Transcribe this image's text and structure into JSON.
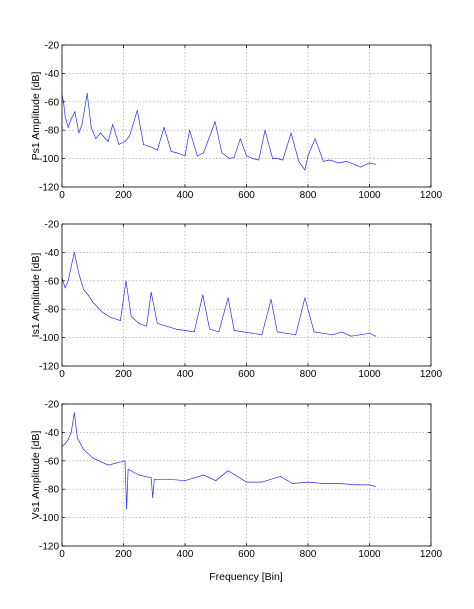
{
  "colors": {
    "series": "#2a2aff",
    "grid": "#9a9a9a",
    "frame": "#000000",
    "background": "#ffffff"
  },
  "chart_data": [
    {
      "type": "line",
      "ylabel": "Ps1 Amplitude [dB]",
      "xlabel": "",
      "xlim": [
        0,
        1200
      ],
      "ylim": [
        -120,
        -20
      ],
      "xticks": [
        0,
        200,
        400,
        600,
        800,
        1000,
        1200
      ],
      "yticks": [
        -20,
        -40,
        -60,
        -80,
        -100,
        -120
      ],
      "xtick_labels": [
        "0",
        "200",
        "400",
        "600",
        "800",
        "1000",
        "1200"
      ],
      "ytick_labels": [
        "-20",
        "-40",
        "-60",
        "-80",
        "-100",
        "-120"
      ],
      "grid": true,
      "series": [
        {
          "x": [
            0,
            5,
            10,
            20,
            30,
            42,
            55,
            65,
            82,
            95,
            110,
            125,
            150,
            165,
            185,
            205,
            220,
            245,
            265,
            290,
            310,
            332,
            355,
            375,
            400,
            415,
            440,
            460,
            498,
            520,
            545,
            560,
            580,
            600,
            620,
            640,
            660,
            685,
            700,
            718,
            745,
            770,
            790,
            800,
            823,
            850,
            870,
            900,
            925,
            950,
            970,
            1000,
            1020
          ],
          "y": [
            -55,
            -60,
            -70,
            -78,
            -72,
            -67,
            -82,
            -76,
            -54,
            -78,
            -86,
            -82,
            -88,
            -76,
            -90,
            -88,
            -84,
            -66,
            -90,
            -92,
            -94,
            -78,
            -95,
            -96,
            -98,
            -80,
            -98,
            -96,
            -74,
            -96,
            -100,
            -99,
            -86,
            -98,
            -100,
            -101,
            -80,
            -100,
            -100,
            -101,
            -82,
            -102,
            -108,
            -98,
            -86,
            -102,
            -101,
            -103,
            -102,
            -104,
            -106,
            -103,
            -104
          ]
        }
      ]
    },
    {
      "type": "line",
      "ylabel": "Is1 Amplitude [dB]",
      "xlabel": "",
      "xlim": [
        0,
        1200
      ],
      "ylim": [
        -120,
        -20
      ],
      "xticks": [
        0,
        200,
        400,
        600,
        800,
        1000,
        1200
      ],
      "yticks": [
        -20,
        -40,
        -60,
        -80,
        -100,
        -120
      ],
      "xtick_labels": [
        "0",
        "200",
        "400",
        "600",
        "800",
        "1000",
        "1200"
      ],
      "ytick_labels": [
        "-20",
        "-40",
        "-60",
        "-80",
        "-100",
        "-120"
      ],
      "grid": true,
      "series": [
        {
          "x": [
            0,
            10,
            20,
            30,
            40,
            55,
            70,
            85,
            100,
            130,
            160,
            190,
            208,
            225,
            250,
            275,
            290,
            310,
            340,
            370,
            400,
            430,
            458,
            480,
            510,
            540,
            560,
            590,
            620,
            650,
            680,
            700,
            730,
            760,
            790,
            820,
            850,
            880,
            910,
            940,
            970,
            1000,
            1020
          ],
          "y": [
            -58,
            -65,
            -60,
            -50,
            -40,
            -55,
            -66,
            -70,
            -75,
            -82,
            -86,
            -88,
            -60,
            -85,
            -90,
            -92,
            -68,
            -90,
            -92,
            -94,
            -95,
            -96,
            -70,
            -94,
            -96,
            -72,
            -95,
            -96,
            -97,
            -98,
            -73,
            -96,
            -97,
            -98,
            -72,
            -96,
            -97,
            -98,
            -96,
            -99,
            -98,
            -97,
            -99
          ]
        }
      ]
    },
    {
      "type": "line",
      "ylabel": "Vs1 Amplitude [dB]",
      "xlabel": "Frequency [Bin]",
      "xlim": [
        0,
        1200
      ],
      "ylim": [
        -120,
        -20
      ],
      "xticks": [
        0,
        200,
        400,
        600,
        800,
        1000,
        1200
      ],
      "yticks": [
        -20,
        -40,
        -60,
        -80,
        -100,
        -120
      ],
      "xtick_labels": [
        "0",
        "200",
        "400",
        "600",
        "800",
        "1000",
        "1200"
      ],
      "ytick_labels": [
        "-20",
        "-40",
        "-60",
        "-80",
        "-100",
        "-120"
      ],
      "grid": true,
      "series": [
        {
          "x": [
            0,
            10,
            20,
            30,
            40,
            50,
            70,
            100,
            150,
            205,
            210,
            215,
            250,
            290,
            295,
            300,
            350,
            400,
            460,
            500,
            540,
            600,
            650,
            710,
            750,
            800,
            850,
            900,
            960,
            1000,
            1020
          ],
          "y": [
            -50,
            -48,
            -45,
            -40,
            -26,
            -44,
            -52,
            -58,
            -63,
            -60,
            -94,
            -66,
            -70,
            -72,
            -86,
            -73,
            -73,
            -74,
            -70,
            -74,
            -67,
            -75,
            -75,
            -71,
            -76,
            -75,
            -76,
            -76,
            -77,
            -77,
            -78
          ]
        }
      ]
    }
  ]
}
